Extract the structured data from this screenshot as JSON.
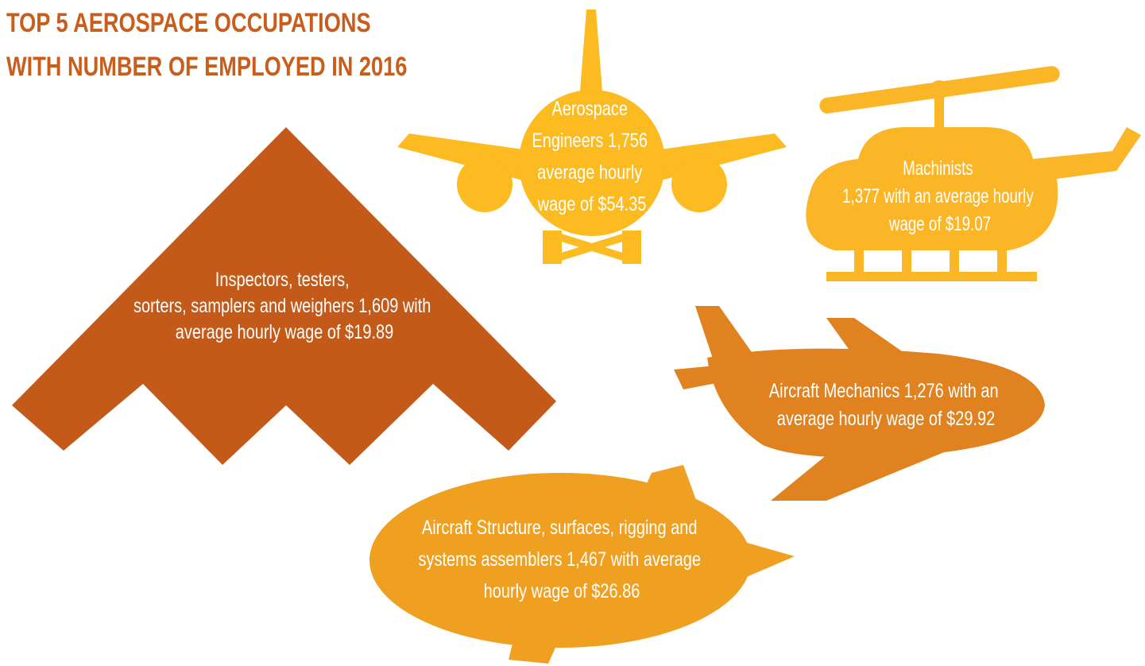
{
  "title": {
    "lines": [
      "TOP 5 AEROSPACE OCCUPATIONS",
      "WITH NUMBER OF EMPLOYED IN 2016"
    ]
  },
  "occupations": [
    {
      "lines": [
        "Inspectors, testers,",
        "sorters, samplers and  weighers 1,609 with",
        "average hourly wage of $19.89"
      ]
    },
    {
      "lines": [
        "Aerospace",
        "Engineers 1,756",
        "average hourly",
        "wage of $54.35"
      ]
    },
    {
      "lines": [
        "Machinists",
        "1,377 with an average hourly",
        "wage of $19.07"
      ]
    },
    {
      "lines": [
        "Aircraft Mechanics 1,276 with an",
        "average hourly wage of $29.92"
      ]
    },
    {
      "lines": [
        "Aircraft Structure, surfaces, rigging and",
        "systems assemblers 1,467 with average",
        "hourly wage of $26.86"
      ]
    }
  ]
}
